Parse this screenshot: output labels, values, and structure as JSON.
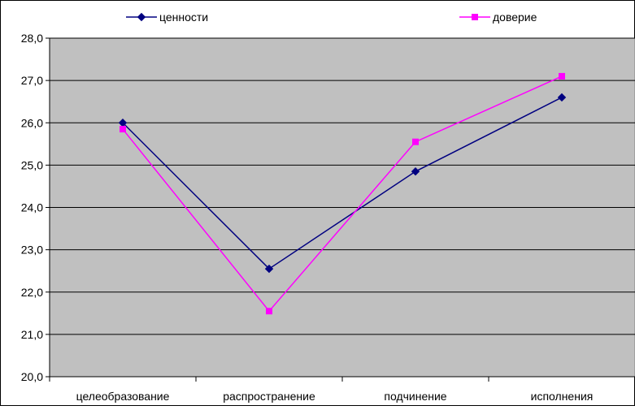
{
  "chart_data": {
    "type": "line",
    "categories": [
      "целеобразование",
      "распространение",
      "подчинение",
      "исполнения"
    ],
    "series": [
      {
        "name": "ценности",
        "values": [
          26.0,
          22.55,
          24.85,
          26.6
        ],
        "color": "#000080",
        "marker": "diamond"
      },
      {
        "name": "доверие",
        "values": [
          25.85,
          21.55,
          25.55,
          27.1
        ],
        "color": "#FF00FF",
        "marker": "square"
      }
    ],
    "ylim": [
      20.0,
      28.0
    ],
    "yticks": [
      "20,0",
      "21,0",
      "22,0",
      "23,0",
      "24,0",
      "25,0",
      "26,0",
      "27,0",
      "28,0"
    ],
    "ytick_values": [
      20,
      21,
      22,
      23,
      24,
      25,
      26,
      27,
      28
    ],
    "grid": true,
    "legend_position": "top",
    "plot_background": "#C0C0C0",
    "title": "",
    "xlabel": "",
    "ylabel": ""
  }
}
